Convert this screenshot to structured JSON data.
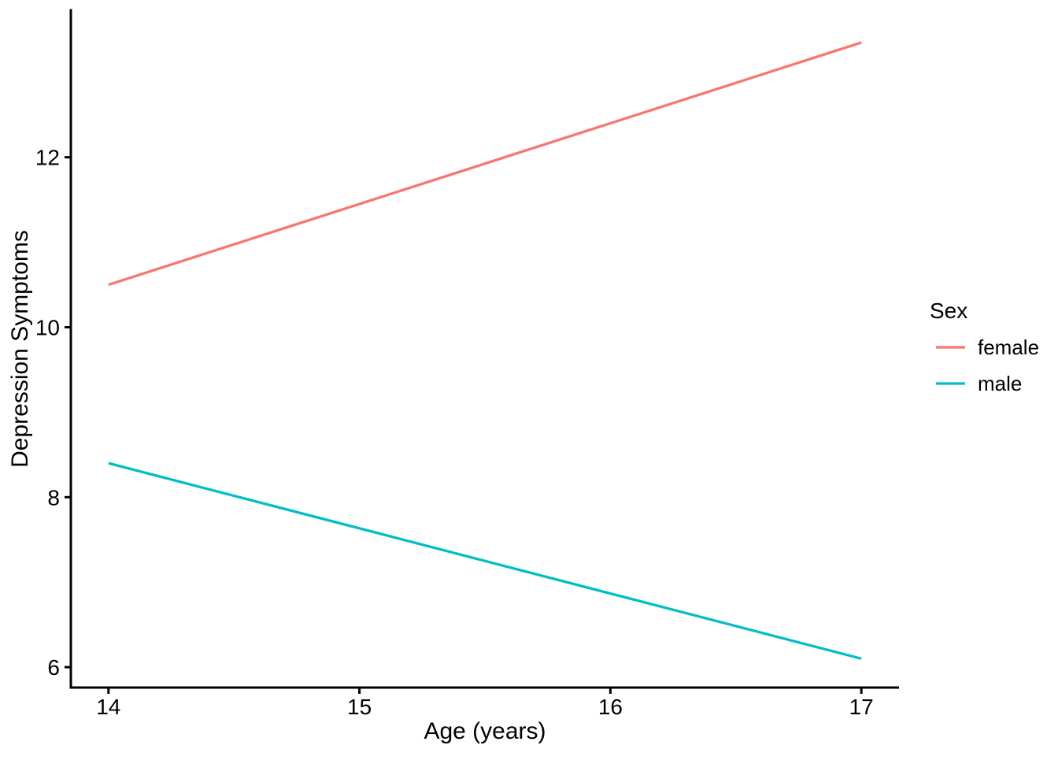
{
  "chart_data": {
    "type": "line",
    "title": "",
    "xlabel": "Age (years)",
    "ylabel": "Depression Symptoms",
    "x_ticks": [
      "14",
      "15",
      "16",
      "17"
    ],
    "x_tick_values": [
      14,
      15,
      16,
      17
    ],
    "y_ticks": [
      "6",
      "8",
      "10",
      "12"
    ],
    "y_tick_values": [
      6,
      8,
      10,
      12
    ],
    "xlim": [
      13.85,
      17.15
    ],
    "ylim": [
      5.76,
      13.73
    ],
    "grid": false,
    "legend": {
      "title": "Sex",
      "position": "right",
      "entries": [
        "female",
        "male"
      ]
    },
    "series": [
      {
        "name": "female",
        "color": "#F8766D",
        "x": [
          14,
          17
        ],
        "y": [
          10.5,
          13.35
        ]
      },
      {
        "name": "male",
        "color": "#00BFC4",
        "x": [
          14,
          17
        ],
        "y": [
          8.4,
          6.1
        ]
      }
    ],
    "styles": {
      "axis_color": "#000000",
      "text_color": "#000000",
      "background": "#FFFFFF",
      "line_width": 3.3,
      "axis_width": 3
    }
  }
}
